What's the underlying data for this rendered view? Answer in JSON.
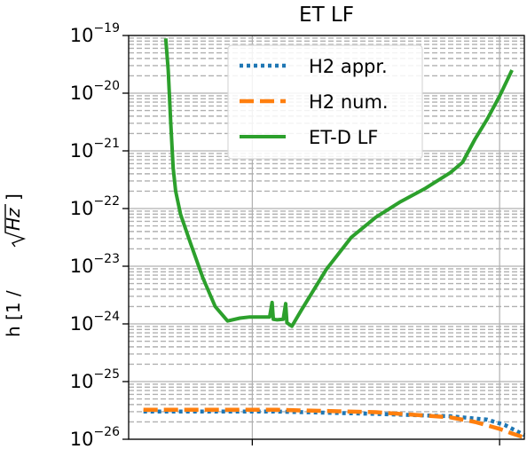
{
  "chart_data": {
    "type": "line",
    "title": "ET LF",
    "xlabel": "",
    "ylabel": "h [1 /√Hz]",
    "ylabel_parts": {
      "prefix": "h [1 /",
      "radicand": "Hz",
      "suffix": "]"
    },
    "yscale": "log",
    "ylim_exp": [
      -26,
      -19
    ],
    "ytick_exponents": [
      -26,
      -25,
      -24,
      -23,
      -22,
      -21,
      -20,
      -19
    ],
    "ytick_base": "10",
    "ytick_labels": [
      "−26",
      "−25",
      "−24",
      "−23",
      "−22",
      "−21",
      "−20",
      "−19"
    ],
    "xscale": "log",
    "xlim_log": [
      0,
      1.6
    ],
    "xticks_log": [
      0.5,
      1.5
    ],
    "grid": true,
    "legend_position": "upper-center",
    "series": [
      {
        "name": "H2 appr.",
        "style": "dotted",
        "color": "#1f77b4",
        "points": [
          [
            0.06,
            -25.52
          ],
          [
            0.6,
            -25.52
          ],
          [
            1.0,
            -25.56
          ],
          [
            1.3,
            -25.6
          ],
          [
            1.45,
            -25.66
          ],
          [
            1.52,
            -25.75
          ],
          [
            1.57,
            -25.86
          ],
          [
            1.6,
            -25.93
          ]
        ]
      },
      {
        "name": "H2 num.",
        "style": "dashed",
        "color": "#ff7f0e",
        "points": [
          [
            0.06,
            -25.49
          ],
          [
            0.6,
            -25.49
          ],
          [
            1.0,
            -25.53
          ],
          [
            1.3,
            -25.62
          ],
          [
            1.4,
            -25.7
          ],
          [
            1.5,
            -25.82
          ],
          [
            1.55,
            -25.9
          ],
          [
            1.6,
            -25.97
          ]
        ]
      },
      {
        "name": "ET-D LF",
        "style": "solid",
        "color": "#2ca02c",
        "points": [
          [
            0.15,
            -19.05
          ],
          [
            0.16,
            -19.6
          ],
          [
            0.17,
            -20.5
          ],
          [
            0.18,
            -21.3
          ],
          [
            0.19,
            -21.7
          ],
          [
            0.21,
            -22.1
          ],
          [
            0.25,
            -22.6
          ],
          [
            0.3,
            -23.2
          ],
          [
            0.35,
            -23.7
          ],
          [
            0.4,
            -23.95
          ],
          [
            0.45,
            -23.9
          ],
          [
            0.49,
            -23.88
          ],
          [
            0.57,
            -23.88
          ],
          [
            0.58,
            -23.63
          ],
          [
            0.585,
            -23.92
          ],
          [
            0.6,
            -23.93
          ],
          [
            0.625,
            -23.92
          ],
          [
            0.635,
            -23.65
          ],
          [
            0.64,
            -23.98
          ],
          [
            0.66,
            -24.04
          ],
          [
            0.7,
            -23.75
          ],
          [
            0.8,
            -23.05
          ],
          [
            0.9,
            -22.5
          ],
          [
            1.0,
            -22.15
          ],
          [
            1.1,
            -21.88
          ],
          [
            1.2,
            -21.65
          ],
          [
            1.3,
            -21.38
          ],
          [
            1.35,
            -21.2
          ],
          [
            1.4,
            -20.8
          ],
          [
            1.45,
            -20.45
          ],
          [
            1.5,
            -20.05
          ],
          [
            1.55,
            -19.6
          ]
        ]
      }
    ]
  }
}
